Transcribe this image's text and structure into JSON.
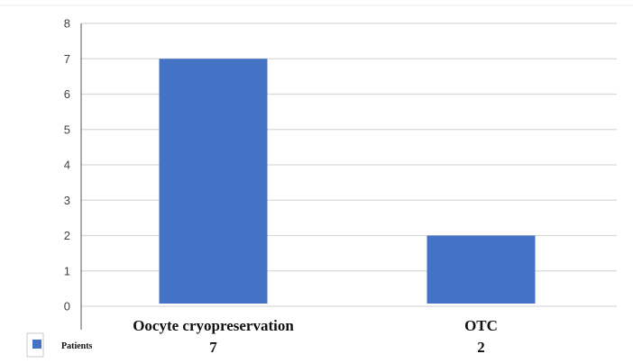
{
  "chart_data": {
    "type": "bar",
    "categories": [
      "Oocyte cryopreservation",
      "OTC"
    ],
    "series": [
      {
        "name": "Patients",
        "values": [
          7,
          2
        ]
      }
    ],
    "value_labels": [
      "7",
      "2"
    ],
    "title": "",
    "xlabel": "",
    "ylabel": "",
    "ylim": [
      0,
      8
    ],
    "yticks": [
      0,
      1,
      2,
      3,
      4,
      5,
      6,
      7,
      8
    ],
    "grid": true,
    "legend_position": "bottom-left",
    "colors": {
      "bar": "#4472c4",
      "grid": "#d9d9d9",
      "axis": "#595959"
    }
  }
}
